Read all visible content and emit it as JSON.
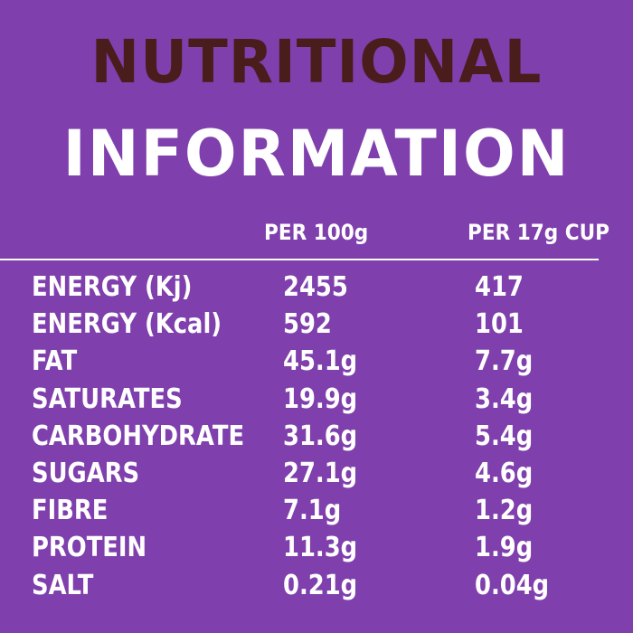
{
  "title": {
    "line1": "NUTRITIONAL",
    "line2": "INFORMATION"
  },
  "columns": {
    "per_100g": "PER 100g",
    "per_cup": "PER 17g CUP"
  },
  "rows": [
    {
      "label": "ENERGY (Kj)",
      "per_100g": "2455",
      "per_cup": "417"
    },
    {
      "label": "ENERGY (Kcal)",
      "per_100g": "592",
      "per_cup": "101"
    },
    {
      "label": "FAT",
      "per_100g": "45.1g",
      "per_cup": "7.7g"
    },
    {
      "label": "SATURATES",
      "per_100g": "19.9g",
      "per_cup": "3.4g"
    },
    {
      "label": "CARBOHYDRATE",
      "per_100g": "31.6g",
      "per_cup": "5.4g"
    },
    {
      "label": "SUGARS",
      "per_100g": "27.1g",
      "per_cup": "4.6g"
    },
    {
      "label": "FIBRE",
      "per_100g": "7.1g",
      "per_cup": "1.2g"
    },
    {
      "label": "PROTEIN",
      "per_100g": "11.3g",
      "per_cup": "1.9g"
    },
    {
      "label": "SALT",
      "per_100g": "0.21g",
      "per_cup": "0.04g"
    }
  ],
  "colors": {
    "background": "#7f3fac",
    "title_dark": "#4a1d1d",
    "text": "#ffffff"
  }
}
